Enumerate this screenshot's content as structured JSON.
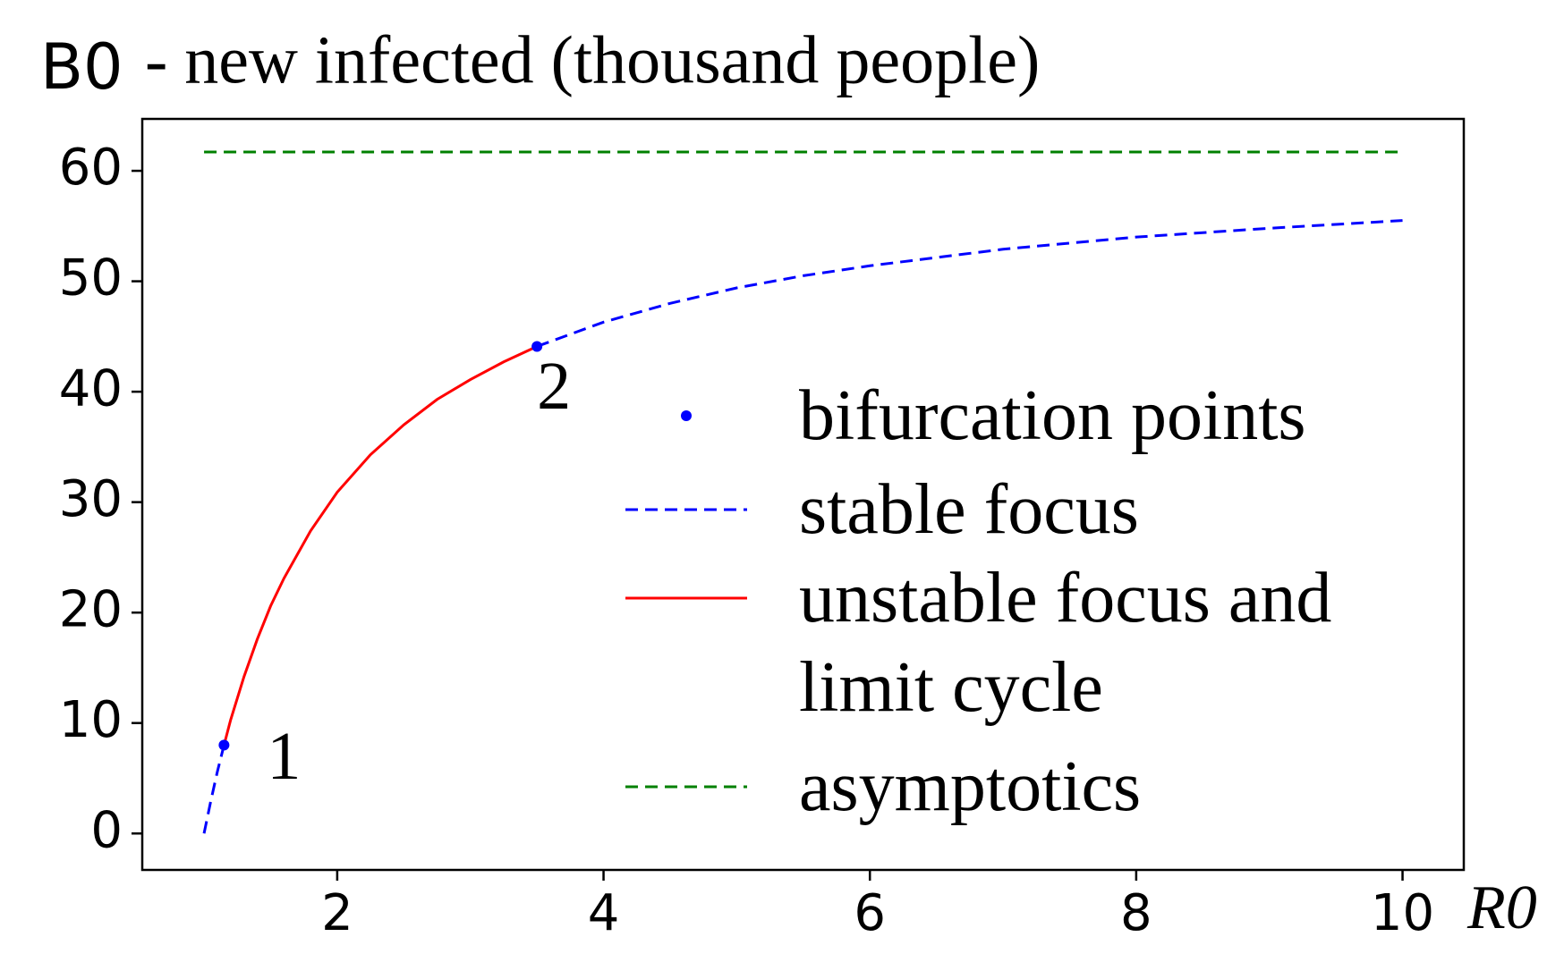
{
  "chart_data": {
    "type": "line",
    "y_label": "B0",
    "title": "- new infected (thousand people)",
    "x_label": "R0",
    "xlim": [
      0.536,
      10.46
    ],
    "ylim": [
      -3.3,
      64.7
    ],
    "xticks": [
      2,
      4,
      6,
      8,
      10
    ],
    "yticks": [
      0,
      10,
      20,
      30,
      40,
      50,
      60
    ],
    "grid": false,
    "series": [
      {
        "name": "bifurcation points",
        "kind": "scatter",
        "color": "#0000ff",
        "x": [
          1.15,
          3.5
        ],
        "values": [
          8.0,
          44.1
        ]
      },
      {
        "name": "stable focus",
        "kind": "line",
        "dash": true,
        "color": "#0000ff",
        "x": [
          1,
          1.05,
          1.1,
          1.15,
          2,
          3.5,
          4,
          4.5,
          5,
          5.5,
          6,
          7,
          8,
          9,
          10
        ],
        "values": [
          0,
          2.9,
          5.6,
          8.0,
          null,
          44.1,
          46.3,
          48.0,
          49.4,
          50.5,
          51.4,
          52.9,
          54.0,
          54.8,
          55.5
        ]
      },
      {
        "name": "unstable focus and limit cycle",
        "kind": "line",
        "dash": false,
        "color": "#ff0000",
        "x": [
          1.15,
          1.2,
          1.3,
          1.4,
          1.5,
          1.6,
          1.8,
          2,
          2.25,
          2.5,
          2.75,
          3,
          3.25,
          3.5
        ],
        "values": [
          8.0,
          10.3,
          14.2,
          17.6,
          20.6,
          23.1,
          27.4,
          30.9,
          34.3,
          37.0,
          39.3,
          41.1,
          42.7,
          44.1
        ]
      },
      {
        "name": "asymptotics",
        "kind": "line",
        "dash": true,
        "color": "#008000",
        "x": [
          1,
          10
        ],
        "values": [
          61.7,
          61.7
        ]
      }
    ],
    "annotations": [
      "1",
      "2"
    ]
  }
}
